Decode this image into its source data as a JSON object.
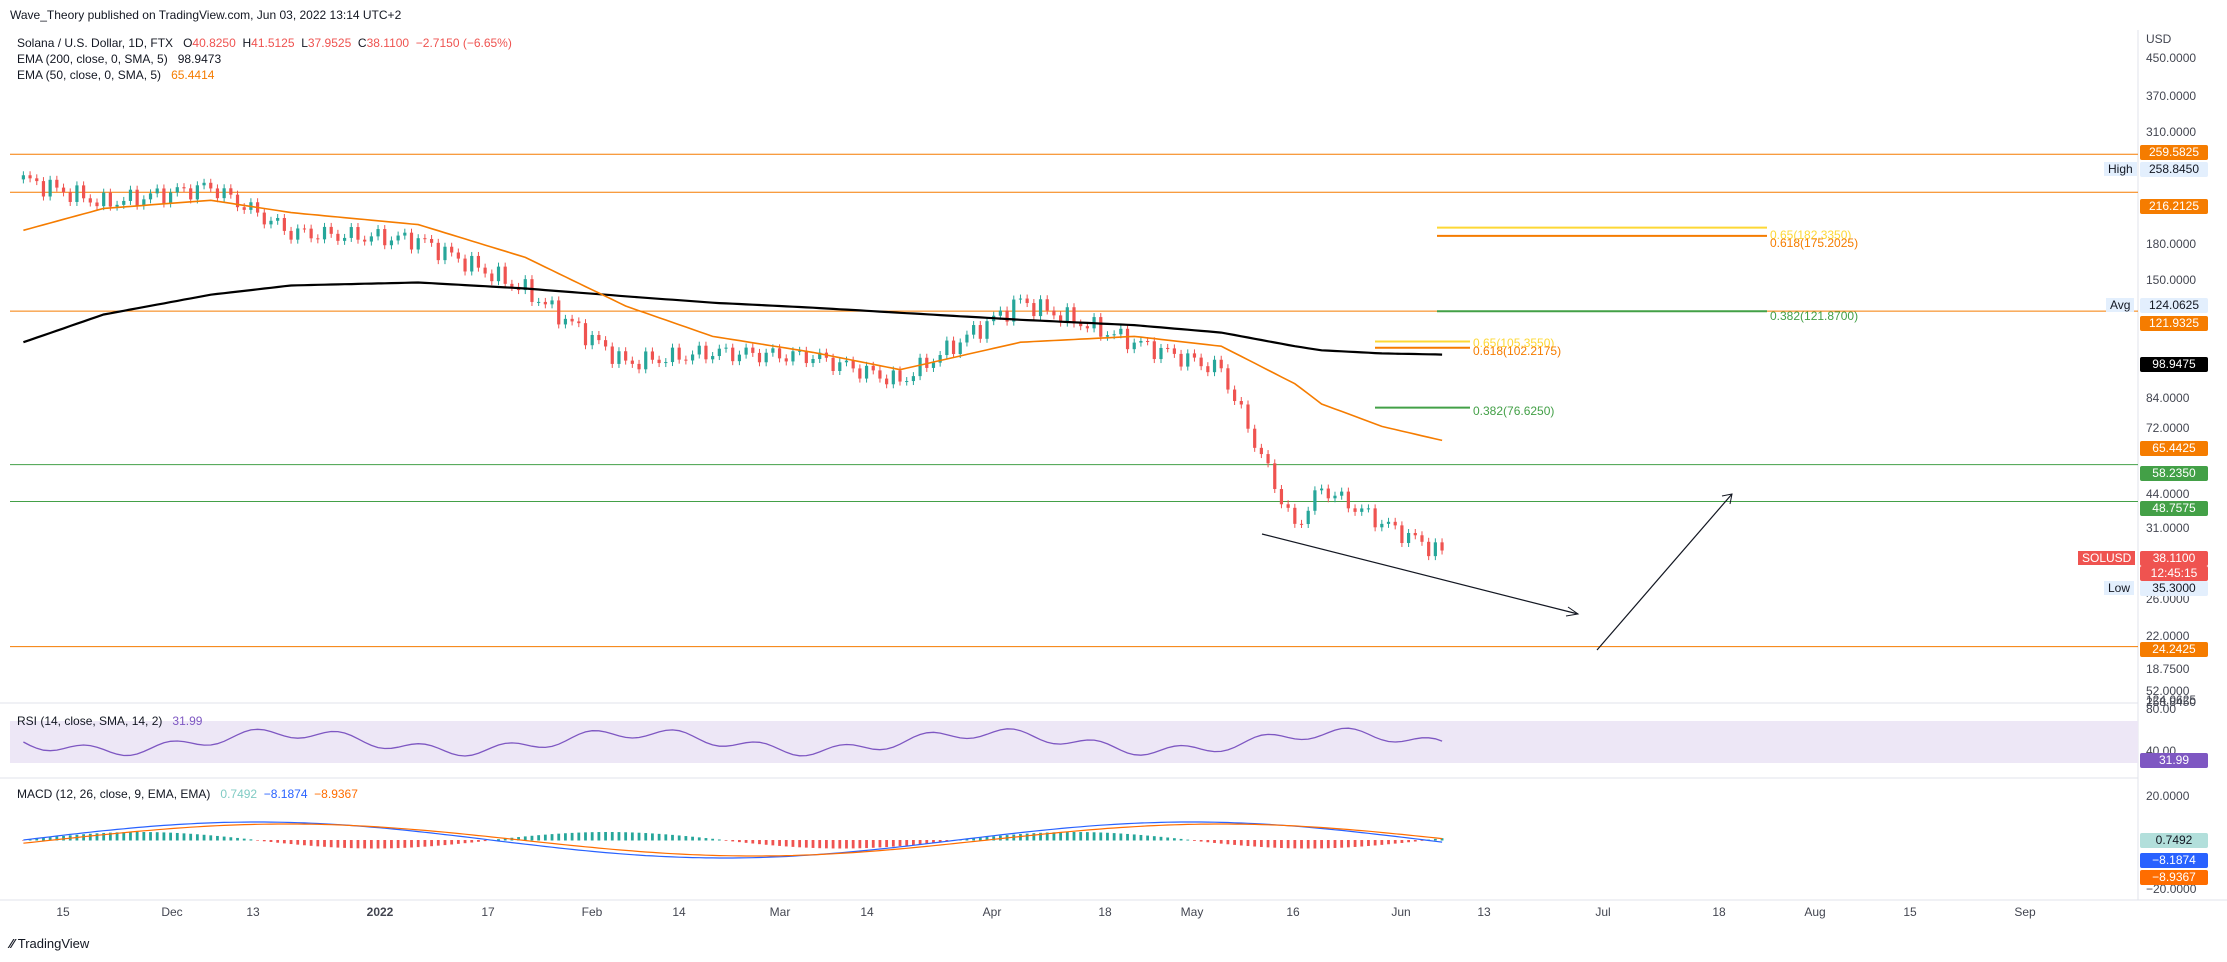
{
  "publisher": "Wave_Theory published on TradingView.com, Jun 03, 2022 13:14 UTC+2",
  "watermark": "TradingView",
  "legend": {
    "symbol": "Solana / U.S. Dollar, 1D, FTX",
    "ohlc": {
      "O": "40.8250",
      "H": "41.5125",
      "L": "37.9525",
      "C": "38.1100",
      "chg": "−2.7150 (−6.65%)"
    },
    "ema200": {
      "label": "EMA (200, close, 0, SMA, 5)",
      "value": "98.9473"
    },
    "ema50": {
      "label": "EMA (50, close, 0, SMA, 5)",
      "value": "65.4414"
    },
    "rsi": {
      "label": "RSI (14, close, SMA, 14, 2)",
      "value": "31.99"
    },
    "macd": {
      "label": "MACD (12, 26, close, 9, EMA, EMA)",
      "v1": "0.7492",
      "v2": "−8.1874",
      "v3": "−8.9367"
    }
  },
  "axis": {
    "currency": "USD",
    "price_ticks": [
      "450.0000",
      "370.0000",
      "310.0000",
      "258.8450",
      "180.0000",
      "150.0000",
      "124.0625",
      "84.0000",
      "72.0000",
      "52.0000",
      "44.0000",
      "31.0000",
      "26.0000",
      "22.0000",
      "18.7500"
    ],
    "rsi_ticks": [
      "80.00",
      "40.00"
    ],
    "macd_ticks": [
      "20.0000",
      "−20.0000"
    ],
    "x_ticks": [
      "15",
      "Dec",
      "13",
      "2022",
      "17",
      "Feb",
      "14",
      "Mar",
      "14",
      "Apr",
      "18",
      "May",
      "16",
      "Jun",
      "13",
      "Jul",
      "18",
      "Aug",
      "15",
      "Sep"
    ]
  },
  "price_tags": {
    "high_label": "High",
    "high": "258.8450",
    "avg_label": "Avg",
    "avg": "124.0625",
    "low_label": "Low",
    "low": "35.3000",
    "lvl_259": "259.5825",
    "lvl_216": "216.2125",
    "lvl_121": "121.9325",
    "ema200": "98.9475",
    "ema50": "65.4425",
    "lvl_58": "58.2350",
    "lvl_48": "48.7575",
    "symbol": "SOLUSD",
    "last": "38.1100",
    "countdown": "12:45:15",
    "lvl_24": "24.2425",
    "rsi": "31.99",
    "macd_hist": "0.7492",
    "macd_line": "−8.1874",
    "macd_signal": "−8.9367"
  },
  "fib_labels": {
    "f1": "0.65(182.3350)",
    "f2": "0.618(175.2025)",
    "f3": "0.382(121.8700)",
    "f4": "0.65(105.3550)",
    "f5": "0.618(102.2175)",
    "f6": "0.382(76.6250)"
  },
  "colors": {
    "up": "#26a69a",
    "down": "#ef5350",
    "ema50": "#f57c00",
    "ema200": "#000000",
    "rsi": "#7e57c2",
    "macd": "#2962ff",
    "signal": "#ff6d00"
  },
  "chart_data": {
    "type": "line",
    "title": "Solana / U.S. Dollar, 1D, FTX",
    "ylabel": "USD",
    "y_scale": "log",
    "ylim": [
      18.75,
      450
    ],
    "x": [
      "2021-11-03",
      "2021-11-15",
      "2021-12-01",
      "2021-12-13",
      "2022-01-01",
      "2022-01-17",
      "2022-02-01",
      "2022-02-14",
      "2022-03-01",
      "2022-03-14",
      "2022-04-01",
      "2022-04-18",
      "2022-05-01",
      "2022-05-12",
      "2022-05-16",
      "2022-05-25",
      "2022-06-03"
    ],
    "series": [
      {
        "name": "Solana / U.S. Dollar",
        "values": [
          230,
          205,
          222,
          178,
          172,
          135,
          95,
          100,
          98,
          87,
          128,
          105,
          92,
          43,
          52,
          44,
          38.11
        ]
      },
      {
        "name": "EMA (200, close, 0, SMA, 5)",
        "values": [
          105,
          120,
          132,
          138,
          140,
          136,
          131,
          127,
          124,
          121,
          117,
          114,
          110,
          103,
          101,
          99.5,
          98.95
        ]
      },
      {
        "name": "EMA (50, close, 0, SMA, 5)",
        "values": [
          180,
          200,
          208,
          196,
          185,
          158,
          125,
          108,
          100,
          92,
          105,
          108,
          103,
          86,
          78,
          70,
          65.44
        ]
      }
    ],
    "horizontal_levels": [
      259.5825,
      216.2125,
      121.9325,
      58.235,
      48.7575,
      24.2425
    ]
  }
}
